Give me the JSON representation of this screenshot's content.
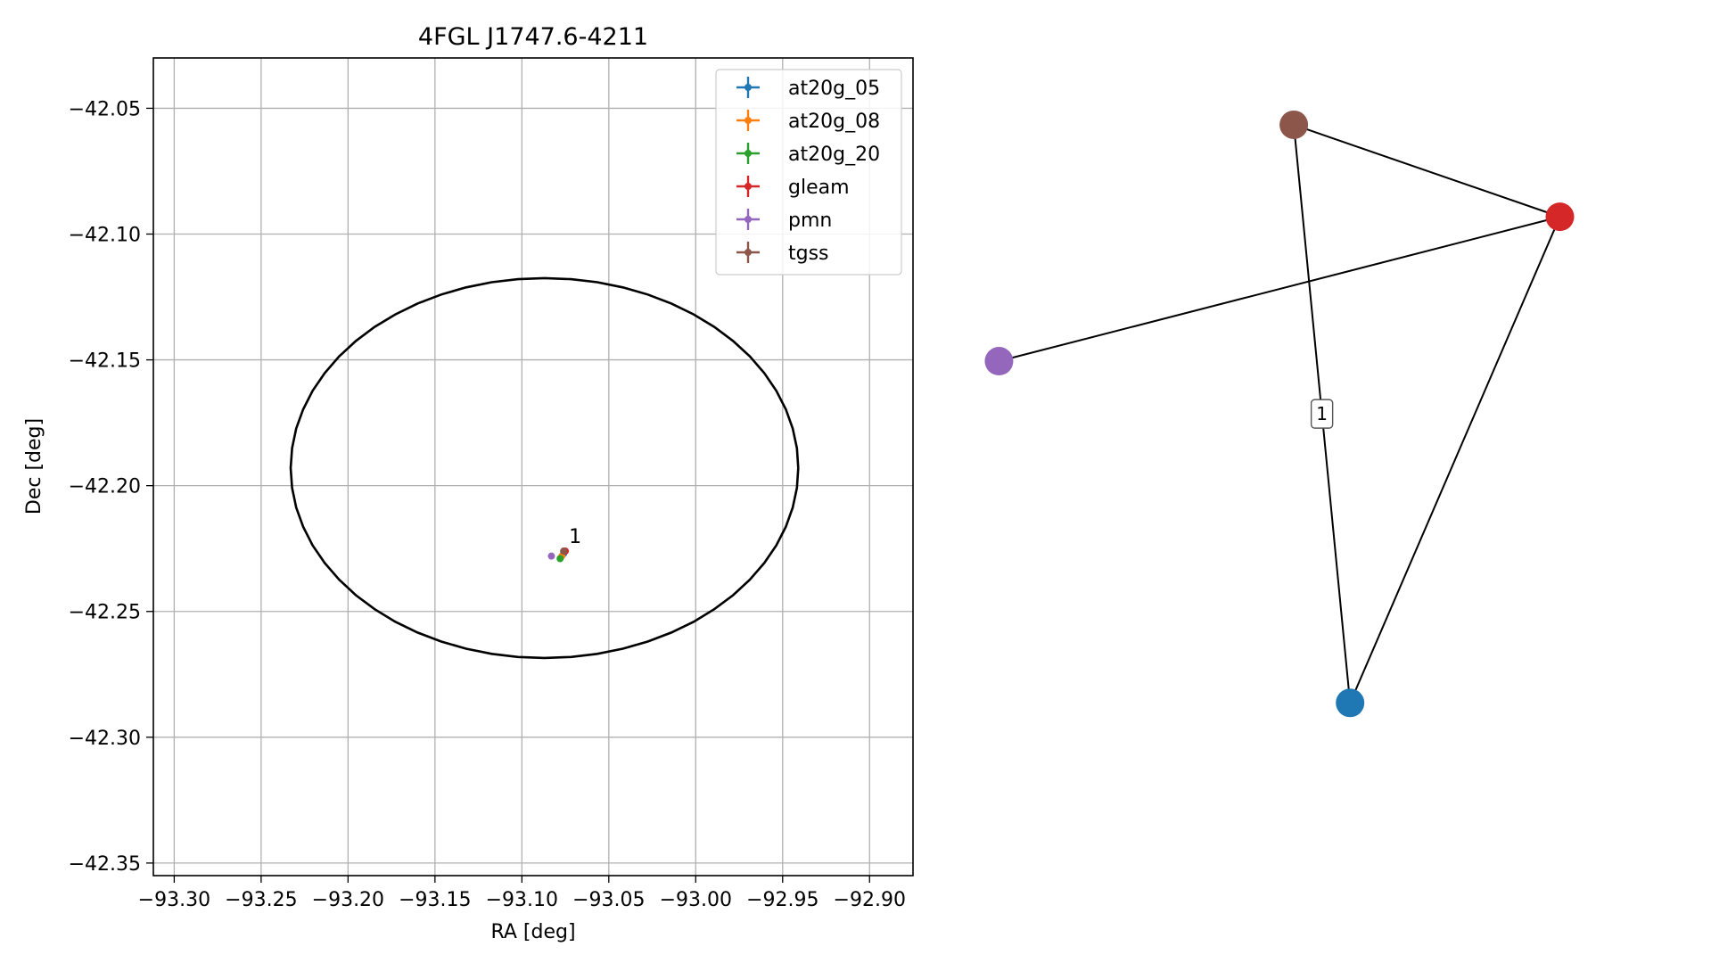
{
  "chart_data": [
    {
      "type": "scatter",
      "title": "4FGL J1747.6-4211",
      "xlabel": "RA [deg]",
      "ylabel": "Dec [deg]",
      "xlim": [
        -93.312,
        -92.875
      ],
      "ylim": [
        -42.355,
        -42.03
      ],
      "xticks": [
        -93.3,
        -93.25,
        -93.2,
        -93.15,
        -93.1,
        -93.05,
        -93.0,
        -92.95,
        -92.9
      ],
      "xtick_labels": [
        "−93.30",
        "−93.25",
        "−93.20",
        "−93.15",
        "−93.10",
        "−93.05",
        "−93.00",
        "−92.95",
        "−92.90"
      ],
      "yticks": [
        -42.05,
        -42.1,
        -42.15,
        -42.2,
        -42.25,
        -42.3,
        -42.35
      ],
      "ytick_labels": [
        "−42.05",
        "−42.10",
        "−42.15",
        "−42.20",
        "−42.25",
        "−42.30",
        "−42.35"
      ],
      "grid": true,
      "legend_position": "top-right",
      "ellipse": {
        "center": [
          -93.087,
          -42.193
        ],
        "ra_radius": 0.146,
        "dec_radius": 0.0755,
        "color": "#000000"
      },
      "series": [
        {
          "name": "at20g_05",
          "color": "#1f77b4",
          "points": [
            [
              -93.076,
              -42.227
            ]
          ]
        },
        {
          "name": "at20g_08",
          "color": "#ff7f0e",
          "points": [
            [
              -93.077,
              -42.228
            ]
          ]
        },
        {
          "name": "at20g_20",
          "color": "#2ca02c",
          "points": [
            [
              -93.078,
              -42.229
            ]
          ]
        },
        {
          "name": "gleam",
          "color": "#d62728",
          "points": [
            [
              -93.075,
              -42.226
            ]
          ]
        },
        {
          "name": "pmn",
          "color": "#9467bd",
          "points": [
            [
              -93.083,
              -42.228
            ]
          ]
        },
        {
          "name": "tgss",
          "color": "#8c564b",
          "points": [
            [
              -93.076,
              -42.226
            ]
          ]
        }
      ],
      "annotations": [
        {
          "text": "1",
          "at": [
            -93.075,
            -42.225
          ]
        }
      ]
    },
    {
      "type": "network",
      "nodes": [
        {
          "id": "tgss",
          "color": "#8c564b",
          "pos": [
            0.522,
            0.927
          ]
        },
        {
          "id": "gleam",
          "color": "#d62728",
          "pos": [
            0.957,
            0.79
          ]
        },
        {
          "id": "pmn",
          "color": "#9467bd",
          "pos": [
            0.04,
            0.575
          ]
        },
        {
          "id": "at20g_05",
          "color": "#1f77b4",
          "pos": [
            0.614,
            0.066
          ]
        }
      ],
      "edges": [
        {
          "from": "tgss",
          "to": "gleam"
        },
        {
          "from": "pmn",
          "to": "gleam"
        },
        {
          "from": "tgss",
          "to": "at20g_05",
          "label": "1"
        },
        {
          "from": "gleam",
          "to": "at20g_05"
        }
      ]
    }
  ]
}
